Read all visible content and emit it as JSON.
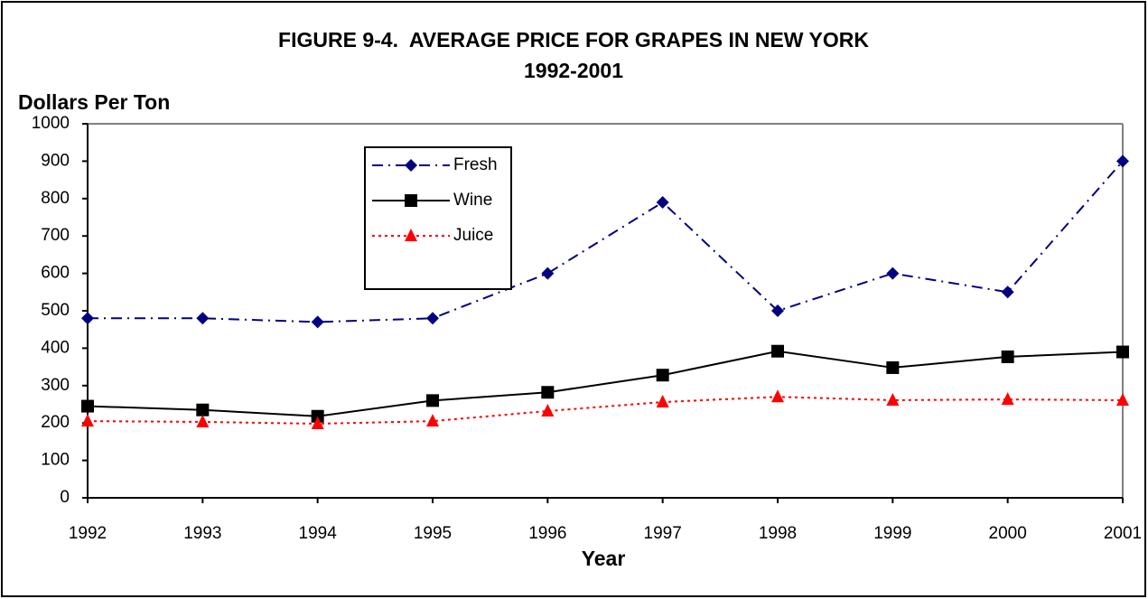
{
  "chart_data": {
    "type": "line",
    "title": "FIGURE 9-4.  AVERAGE PRICE FOR GRAPES IN NEW YORK",
    "subtitle": "1992-2001",
    "y_label": "Dollars Per Ton",
    "x_label": "Year",
    "categories": [
      "1992",
      "1993",
      "1994",
      "1995",
      "1996",
      "1997",
      "1998",
      "1999",
      "2000",
      "2001"
    ],
    "series": [
      {
        "name": "Fresh",
        "color": "#000080",
        "dash": "dashdot",
        "marker": "diamond",
        "values": [
          480,
          480,
          470,
          480,
          600,
          790,
          500,
          600,
          550,
          900
        ]
      },
      {
        "name": "Wine",
        "color": "#000000",
        "dash": "solid",
        "marker": "square",
        "values": [
          245,
          235,
          218,
          260,
          282,
          328,
          392,
          348,
          377,
          390
        ]
      },
      {
        "name": "Juice",
        "color": "#ff0000",
        "dash": "dotted",
        "marker": "triangle",
        "values": [
          205,
          203,
          198,
          205,
          232,
          256,
          270,
          261,
          263,
          261
        ]
      }
    ],
    "ylim": [
      0,
      1000
    ],
    "yticks": [
      0,
      100,
      200,
      300,
      400,
      500,
      600,
      700,
      800,
      900,
      1000
    ],
    "legend": "upper left"
  }
}
